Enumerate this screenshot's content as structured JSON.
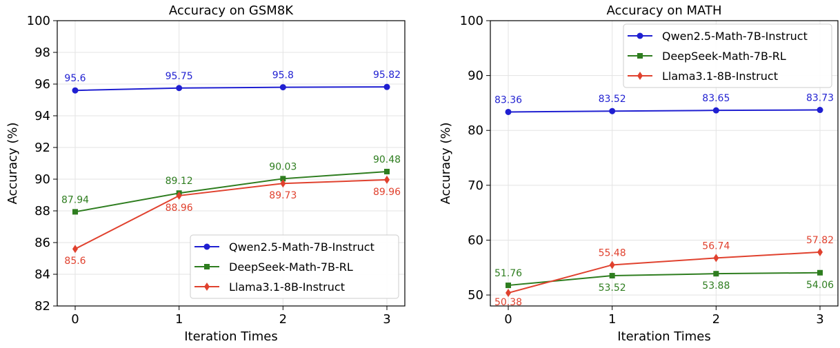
{
  "chart_data": [
    {
      "type": "line",
      "title": "Accuracy on GSM8K",
      "xlabel": "Iteration Times",
      "ylabel": "Accuracy (%)",
      "x": [
        0,
        1,
        2,
        3
      ],
      "xticks": [
        "0",
        "1",
        "2",
        "3"
      ],
      "ylim": [
        82,
        100
      ],
      "yticks": [
        "82",
        "84",
        "86",
        "88",
        "90",
        "92",
        "94",
        "96",
        "98",
        "100"
      ],
      "grid": true,
      "legend_position": "bottom-right",
      "series": [
        {
          "name": "Qwen2.5-Math-7B-Instruct",
          "color": "#1f1fd1",
          "marker": "circle",
          "values": [
            95.6,
            95.75,
            95.8,
            95.82
          ],
          "labels": [
            "95.6",
            "95.75",
            "95.8",
            "95.82"
          ]
        },
        {
          "name": "DeepSeek-Math-7B-RL",
          "color": "#2e7d1f",
          "marker": "square",
          "values": [
            87.94,
            89.12,
            90.03,
            90.48
          ],
          "labels": [
            "87.94",
            "89.12",
            "90.03",
            "90.48"
          ]
        },
        {
          "name": "Llama3.1-8B-Instruct",
          "color": "#e0412e",
          "marker": "diamond",
          "values": [
            85.6,
            88.96,
            89.73,
            89.96
          ],
          "labels": [
            "85.6",
            "88.96",
            "89.73",
            "89.96"
          ]
        }
      ]
    },
    {
      "type": "line",
      "title": "Accuracy on MATH",
      "xlabel": "Iteration Times",
      "ylabel": "Accuracy (%)",
      "x": [
        0,
        1,
        2,
        3
      ],
      "xticks": [
        "0",
        "1",
        "2",
        "3"
      ],
      "ylim": [
        48,
        100
      ],
      "yticks": [
        "50",
        "60",
        "70",
        "80",
        "90",
        "100"
      ],
      "grid": true,
      "legend_position": "top-right",
      "series": [
        {
          "name": "Qwen2.5-Math-7B-Instruct",
          "color": "#1f1fd1",
          "marker": "circle",
          "values": [
            83.36,
            83.52,
            83.65,
            83.73
          ],
          "labels": [
            "83.36",
            "83.52",
            "83.65",
            "83.73"
          ]
        },
        {
          "name": "DeepSeek-Math-7B-RL",
          "color": "#2e7d1f",
          "marker": "square",
          "values": [
            51.76,
            53.52,
            53.88,
            54.06
          ],
          "labels": [
            "51.76",
            "53.52",
            "53.88",
            "54.06"
          ]
        },
        {
          "name": "Llama3.1-8B-Instruct",
          "color": "#e0412e",
          "marker": "diamond",
          "values": [
            50.38,
            55.48,
            56.74,
            57.82
          ],
          "labels": [
            "50.38",
            "55.48",
            "56.74",
            "57.82"
          ]
        }
      ]
    }
  ]
}
